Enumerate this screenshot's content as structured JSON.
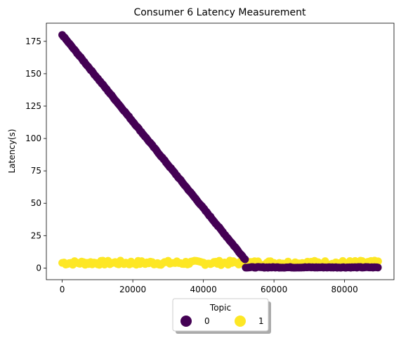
{
  "chart_data": {
    "type": "scatter",
    "title": "Consumer 6 Latency Measurement",
    "xlabel": "",
    "ylabel": "Latency(s)",
    "xlim": [
      -4500,
      94000
    ],
    "ylim": [
      -9,
      189
    ],
    "xticks": [
      0,
      20000,
      40000,
      60000,
      80000
    ],
    "yticks": [
      0,
      25,
      50,
      75,
      100,
      125,
      150,
      175
    ],
    "grid": false,
    "legend": {
      "title": "Topic",
      "placement": "bottom-center, below axes",
      "entries": [
        "0",
        "1"
      ]
    },
    "series": [
      {
        "name": "0",
        "color": "#440154",
        "segments": [
          {
            "x_start": 0,
            "x_end": 52000,
            "y_start": 180,
            "y_end": 6
          },
          {
            "x_start": 52000,
            "x_end": 89500,
            "y_start": 0.5,
            "y_end": 0.5
          }
        ]
      },
      {
        "name": "1",
        "color": "#fde725",
        "segments": [
          {
            "x_start": 0,
            "x_end": 89500,
            "y_start": 4,
            "y_end": 4
          }
        ]
      }
    ]
  }
}
